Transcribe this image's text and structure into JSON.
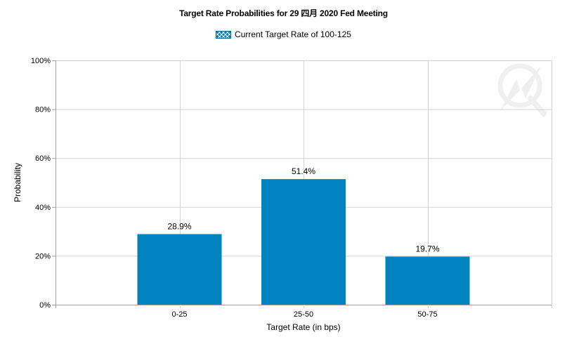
{
  "chart_data": {
    "type": "bar",
    "title": "Target Rate Probabilities for 29 四月  2020 Fed Meeting",
    "legend": {
      "label": "Current Target Rate of 100-125",
      "position": "top-center"
    },
    "categories": [
      "0-25",
      "25-50",
      "50-75"
    ],
    "values": [
      28.9,
      51.4,
      19.7
    ],
    "data_labels": [
      "28.9%",
      "51.4%",
      "19.7%"
    ],
    "xlabel": "Target Rate (in bps)",
    "ylabel": "Probability",
    "ylim": [
      0,
      100
    ],
    "yticks": [
      "0%",
      "20%",
      "40%",
      "60%",
      "80%",
      "100%"
    ],
    "grid": true
  },
  "colors": {
    "bar": "#0083be",
    "grid": "#d3d3d3",
    "axis": "#a0a0a0"
  },
  "icons": {
    "watermark": "watermark-logo-icon"
  }
}
